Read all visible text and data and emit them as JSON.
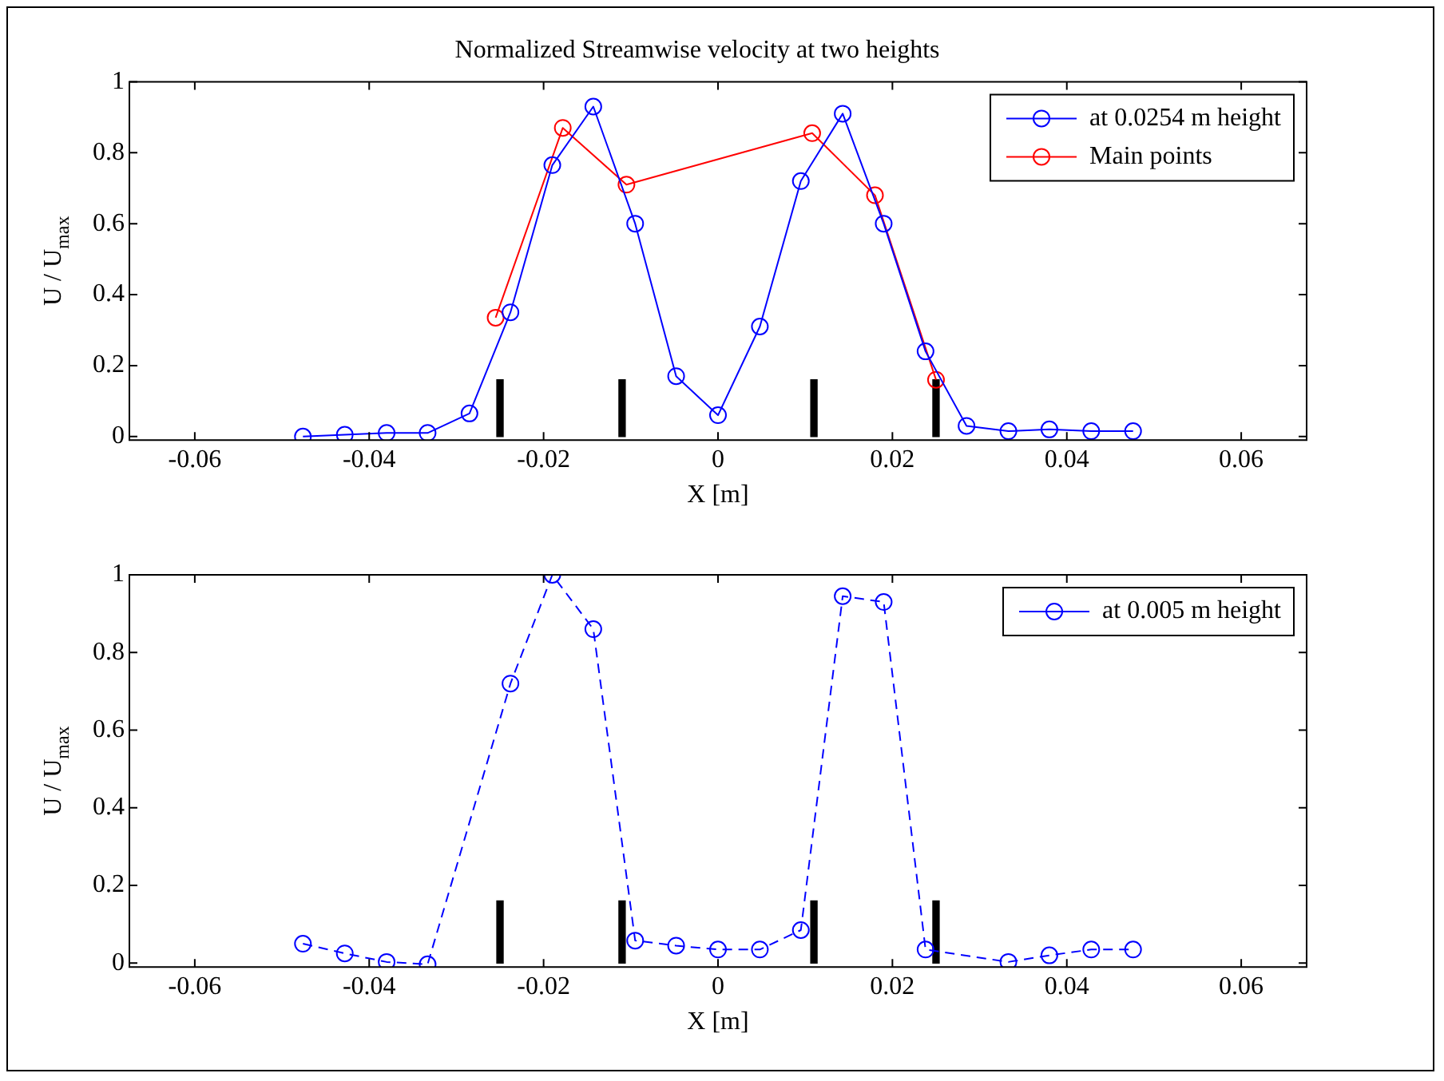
{
  "chart_data": [
    {
      "type": "line",
      "title": "Normalized Streamwise velocity at two heights",
      "xlabel": "X [m]",
      "ylabel": "U / U$_{max}$",
      "xlim": [
        -0.0675,
        0.0675
      ],
      "xticks": [
        -0.06,
        -0.04,
        -0.02,
        0,
        0.02,
        0.04,
        0.06
      ],
      "ylim": [
        -0.01,
        1
      ],
      "yticks": [
        0,
        0.2,
        0.4,
        0.6,
        0.8,
        1
      ],
      "grid": false,
      "legend": "top right",
      "marker": "circle",
      "line_style": "solid",
      "series": [
        {
          "name": "at 0.0254 m height",
          "color": "#0000ff",
          "x": [
            -0.0476,
            -0.0428,
            -0.038,
            -0.0333,
            -0.0285,
            -0.0238,
            -0.019,
            -0.0143,
            -0.0095,
            -0.0048,
            0,
            0.0048,
            0.0095,
            0.0143,
            0.019,
            0.0238,
            0.0285,
            0.0333,
            0.038,
            0.0428,
            0.0476
          ],
          "values": [
            0,
            0.005,
            0.01,
            0.01,
            0.065,
            0.35,
            0.765,
            0.93,
            0.6,
            0.17,
            0.06,
            0.31,
            0.72,
            0.91,
            0.6,
            0.24,
            0.03,
            0.015,
            0.02,
            0.015,
            0.015
          ]
        },
        {
          "name": "Main points",
          "color": "#ff0000",
          "x": [
            -0.0255,
            -0.0178,
            -0.0105,
            0.0108,
            0.018,
            0.025
          ],
          "values": [
            0.335,
            0.87,
            0.71,
            0.855,
            0.68,
            0.16
          ]
        },
        {
          "type": "bar",
          "color": "#000000",
          "x": [
            -0.025,
            -0.011,
            0.011,
            0.025
          ],
          "values": [
            0.16,
            0.16,
            0.16,
            0.16
          ]
        }
      ]
    },
    {
      "type": "line",
      "xlabel": "X [m]",
      "ylabel": "U / U$_{max}$",
      "xlim": [
        -0.0675,
        0.0675
      ],
      "xticks": [
        -0.06,
        -0.04,
        -0.02,
        0,
        0.02,
        0.04,
        0.06
      ],
      "ylim": [
        -0.01,
        1
      ],
      "yticks": [
        0,
        0.2,
        0.4,
        0.6,
        0.8,
        1
      ],
      "grid": false,
      "legend": "top right",
      "marker": "circle",
      "line_style": "dashed",
      "series": [
        {
          "name": "at 0.005 m height",
          "color": "#0000ff",
          "x": [
            -0.0476,
            -0.0428,
            -0.038,
            -0.0333,
            -0.0238,
            -0.019,
            -0.0143,
            -0.0095,
            -0.0048,
            0,
            0.0048,
            0.0095,
            0.0143,
            0.019,
            0.0238,
            0.0333,
            0.038,
            0.0428,
            0.0476
          ],
          "values": [
            0.05,
            0.025,
            0.003,
            -0.003,
            0.72,
            1,
            0.86,
            0.058,
            0.045,
            0.035,
            0.035,
            0.085,
            0.945,
            0.93,
            0.035,
            0.003,
            0.02,
            0.035,
            0.035
          ]
        },
        {
          "type": "bar",
          "color": "#000000",
          "x": [
            -0.025,
            -0.011,
            0.011,
            0.025
          ],
          "values": [
            0.16,
            0.16,
            0.16,
            0.16
          ]
        }
      ]
    }
  ]
}
